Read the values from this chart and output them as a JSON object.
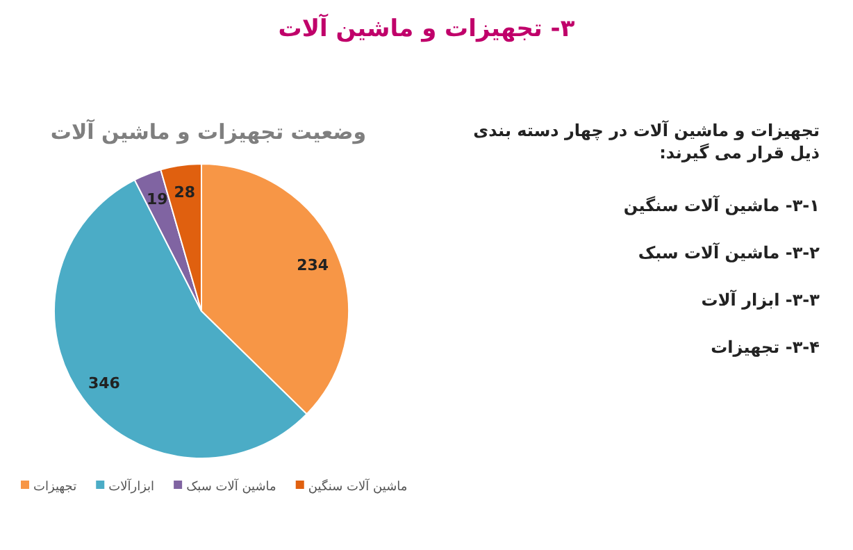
{
  "chart_data": {
    "type": "pie",
    "title": "۳- تجهیزات و ماشین آلات",
    "subtitle": "وضعیت تجهیزات و ماشین آلات",
    "categories": [
      "تجهیزات",
      "ابزارآلات",
      "ماشین آلات سبک",
      "ماشین آلات سنگین"
    ],
    "values": [
      234,
      346,
      19,
      28
    ],
    "colors": [
      "#f79646",
      "#4bacc6",
      "#8064a2",
      "#e0600f"
    ],
    "data_labels": true,
    "legend": "bottom",
    "annotations": [
      "تجهیزات و ماشین آلات در چهار دسته بندی ذیل قرار می گیرند:",
      "۳-۱- ماشین آلات سنگین",
      "۳-۲- ماشین آلات سبک",
      "۳-۳- ابزار آلات",
      "۳-۴- تجهیزات"
    ]
  }
}
